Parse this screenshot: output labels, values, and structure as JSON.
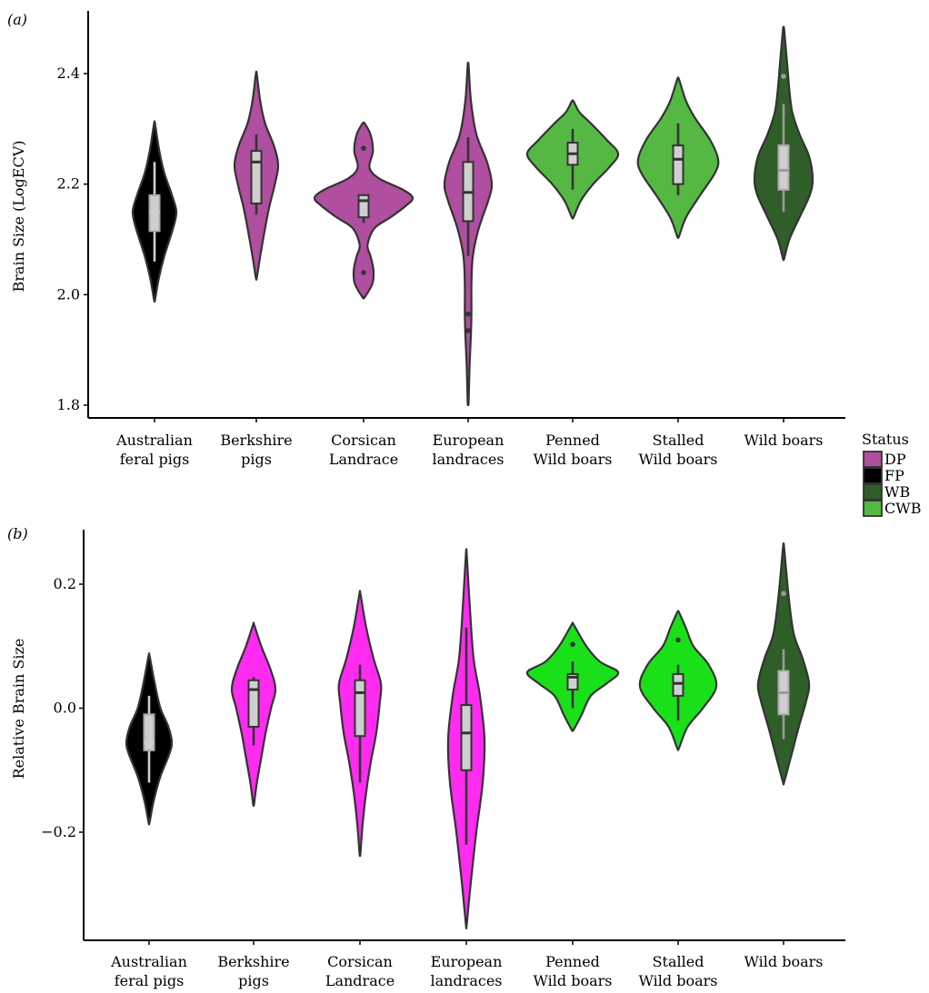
{
  "figure": {
    "legend": {
      "title": "Status",
      "entries": [
        {
          "label": "DP",
          "color": "#b04ea0"
        },
        {
          "label": "FP",
          "color": "#000000"
        },
        {
          "label": "WB",
          "color": "#2f5e28"
        },
        {
          "label": "CWB",
          "color": "#55b843"
        }
      ]
    },
    "categories_line1": [
      "Australian",
      "Berkshire",
      "Corsican",
      "European",
      "Penned",
      "Stalled",
      "Wild boars"
    ],
    "categories_line2": [
      "feral pigs",
      "pigs",
      "Landrace",
      "landraces",
      "Wild boars",
      "Wild boars",
      ""
    ]
  },
  "chart_data": [
    {
      "type": "violin",
      "panel_label": "(a)",
      "ylabel": "Brain Size (LogECV)",
      "xlabel": "",
      "ylim": [
        1.78,
        2.52
      ],
      "yticks": [
        1.8,
        2.0,
        2.2,
        2.4
      ],
      "ytick_labels": [
        "1.8",
        "2.0",
        "2.2",
        "2.4"
      ],
      "categories": [
        "Australian feral pigs",
        "Berkshire pigs",
        "Corsican Landrace",
        "European landraces",
        "Penned Wild boars",
        "Stalled Wild boars",
        "Wild boars"
      ],
      "series": [
        {
          "category": "Australian feral pigs",
          "status": "FP",
          "fill": "#000000",
          "box_color": "#cfcfcf",
          "whisker_color": "#cfcfcf",
          "range": [
            1.99,
            2.31
          ],
          "min": 2.06,
          "q1": 2.115,
          "median": 2.15,
          "q3": 2.18,
          "max": 2.24,
          "outliers": [],
          "density": [
            [
              1.99,
              0.02
            ],
            [
              2.03,
              0.2
            ],
            [
              2.07,
              0.45
            ],
            [
              2.12,
              0.85
            ],
            [
              2.15,
              1.0
            ],
            [
              2.18,
              0.8
            ],
            [
              2.22,
              0.45
            ],
            [
              2.26,
              0.22
            ],
            [
              2.31,
              0.02
            ]
          ]
        },
        {
          "category": "Berkshire pigs",
          "status": "DP",
          "fill": "#b04ea0",
          "box_color": "#cfcfcf",
          "whisker_color": "#333333",
          "range": [
            2.03,
            2.4
          ],
          "min": 2.145,
          "q1": 2.165,
          "median": 2.24,
          "q3": 2.26,
          "max": 2.29,
          "outliers": [],
          "density": [
            [
              2.03,
              0.02
            ],
            [
              2.07,
              0.18
            ],
            [
              2.12,
              0.4
            ],
            [
              2.16,
              0.6
            ],
            [
              2.2,
              0.85
            ],
            [
              2.235,
              1.0
            ],
            [
              2.27,
              0.8
            ],
            [
              2.31,
              0.4
            ],
            [
              2.35,
              0.18
            ],
            [
              2.4,
              0.02
            ]
          ]
        },
        {
          "category": "Corsican Landrace",
          "status": "DP",
          "fill": "#b04ea0",
          "box_color": "#cfcfcf",
          "whisker_color": "#333333",
          "range": [
            1.995,
            2.31
          ],
          "min": 2.13,
          "q1": 2.14,
          "median": 2.17,
          "q3": 2.18,
          "max": 2.18,
          "outliers": [
            2.265,
            2.04
          ],
          "density": [
            [
              1.995,
              0.02
            ],
            [
              2.02,
              0.18
            ],
            [
              2.045,
              0.2
            ],
            [
              2.07,
              0.14
            ],
            [
              2.09,
              0.08
            ],
            [
              2.12,
              0.22
            ],
            [
              2.14,
              0.55
            ],
            [
              2.16,
              0.85
            ],
            [
              2.175,
              1.0
            ],
            [
              2.19,
              0.8
            ],
            [
              2.21,
              0.32
            ],
            [
              2.23,
              0.12
            ],
            [
              2.26,
              0.19
            ],
            [
              2.29,
              0.14
            ],
            [
              2.31,
              0.02
            ]
          ]
        },
        {
          "category": "European landraces",
          "status": "DP",
          "fill": "#b04ea0",
          "box_color": "#cfcfcf",
          "whisker_color": "#333333",
          "range": [
            1.805,
            2.415
          ],
          "min": 2.07,
          "q1": 2.133,
          "median": 2.185,
          "q3": 2.24,
          "max": 2.285,
          "outliers": [
            1.965,
            1.935
          ],
          "density": [
            [
              1.805,
              0.02
            ],
            [
              1.87,
              0.06
            ],
            [
              1.93,
              0.12
            ],
            [
              1.97,
              0.14
            ],
            [
              2.02,
              0.14
            ],
            [
              2.07,
              0.2
            ],
            [
              2.12,
              0.45
            ],
            [
              2.17,
              0.85
            ],
            [
              2.2,
              1.0
            ],
            [
              2.24,
              0.8
            ],
            [
              2.29,
              0.35
            ],
            [
              2.35,
              0.12
            ],
            [
              2.415,
              0.02
            ]
          ]
        },
        {
          "category": "Penned Wild boars",
          "status": "CWB",
          "fill": "#55b843",
          "box_color": "#cfcfcf",
          "whisker_color": "#333333",
          "range": [
            2.14,
            2.35
          ],
          "min": 2.19,
          "q1": 2.235,
          "median": 2.255,
          "q3": 2.275,
          "max": 2.3,
          "outliers": [],
          "density": [
            [
              2.14,
              0.02
            ],
            [
              2.17,
              0.18
            ],
            [
              2.2,
              0.45
            ],
            [
              2.23,
              0.8
            ],
            [
              2.255,
              1.0
            ],
            [
              2.28,
              0.75
            ],
            [
              2.31,
              0.4
            ],
            [
              2.33,
              0.15
            ],
            [
              2.35,
              0.02
            ]
          ]
        },
        {
          "category": "Stalled Wild boars",
          "status": "CWB",
          "fill": "#55b843",
          "box_color": "#cfcfcf",
          "whisker_color": "#333333",
          "range": [
            2.105,
            2.39
          ],
          "min": 2.18,
          "q1": 2.2,
          "median": 2.245,
          "q3": 2.27,
          "max": 2.31,
          "outliers": [],
          "density": [
            [
              2.105,
              0.02
            ],
            [
              2.14,
              0.2
            ],
            [
              2.18,
              0.55
            ],
            [
              2.22,
              0.92
            ],
            [
              2.245,
              1.0
            ],
            [
              2.28,
              0.8
            ],
            [
              2.32,
              0.42
            ],
            [
              2.35,
              0.2
            ],
            [
              2.39,
              0.02
            ]
          ]
        },
        {
          "category": "Wild boars",
          "status": "WB",
          "fill": "#2f5e28",
          "box_color": "#cfcfcf",
          "whisker_color": "#9a9a9a",
          "range": [
            2.065,
            2.48
          ],
          "min": 2.15,
          "q1": 2.19,
          "median": 2.225,
          "q3": 2.27,
          "max": 2.345,
          "outliers": [
            2.395
          ],
          "density": [
            [
              2.065,
              0.02
            ],
            [
              2.1,
              0.2
            ],
            [
              2.14,
              0.55
            ],
            [
              2.18,
              0.9
            ],
            [
              2.21,
              1.0
            ],
            [
              2.25,
              0.88
            ],
            [
              2.29,
              0.55
            ],
            [
              2.33,
              0.3
            ],
            [
              2.37,
              0.2
            ],
            [
              2.42,
              0.12
            ],
            [
              2.48,
              0.02
            ]
          ]
        }
      ]
    },
    {
      "type": "violin",
      "panel_label": "(b)",
      "ylabel": "Relative Brain Size",
      "xlabel": "",
      "ylim": [
        -0.38,
        0.29
      ],
      "yticks": [
        -0.2,
        0.0,
        0.2
      ],
      "ytick_labels": [
        "−0.2",
        "0.0",
        "0.2"
      ],
      "categories": [
        "Australian feral pigs",
        "Berkshire pigs",
        "Corsican Landrace",
        "European landraces",
        "Penned Wild boars",
        "Stalled Wild boars",
        "Wild boars"
      ],
      "series": [
        {
          "category": "Australian feral pigs",
          "status": "FP",
          "fill": "#000000",
          "box_color": "#cfcfcf",
          "whisker_color": "#cfcfcf",
          "range": [
            -0.185,
            0.085
          ],
          "min": -0.12,
          "q1": -0.068,
          "median": -0.055,
          "q3": -0.01,
          "max": 0.02,
          "outliers": [],
          "density": [
            [
              -0.185,
              0.02
            ],
            [
              -0.15,
              0.2
            ],
            [
              -0.11,
              0.5
            ],
            [
              -0.075,
              0.88
            ],
            [
              -0.055,
              1.0
            ],
            [
              -0.03,
              0.85
            ],
            [
              0.0,
              0.5
            ],
            [
              0.04,
              0.25
            ],
            [
              0.085,
              0.02
            ]
          ]
        },
        {
          "category": "Berkshire pigs",
          "status": "DP",
          "fill": "#ff2bf0",
          "box_color": "#cfcfcf",
          "whisker_color": "#333333",
          "range": [
            -0.155,
            0.135
          ],
          "min": -0.06,
          "q1": -0.03,
          "median": 0.03,
          "q3": 0.045,
          "max": 0.05,
          "outliers": [],
          "density": [
            [
              -0.155,
              0.02
            ],
            [
              -0.12,
              0.15
            ],
            [
              -0.08,
              0.35
            ],
            [
              -0.04,
              0.55
            ],
            [
              0.0,
              0.8
            ],
            [
              0.03,
              1.0
            ],
            [
              0.06,
              0.8
            ],
            [
              0.1,
              0.35
            ],
            [
              0.135,
              0.02
            ]
          ]
        },
        {
          "category": "Corsican Landrace",
          "status": "DP",
          "fill": "#ff2bf0",
          "box_color": "#cfcfcf",
          "whisker_color": "#333333",
          "range": [
            -0.235,
            0.185
          ],
          "min": -0.12,
          "q1": -0.045,
          "median": 0.025,
          "q3": 0.045,
          "max": 0.07,
          "outliers": [],
          "density": [
            [
              -0.235,
              0.02
            ],
            [
              -0.19,
              0.12
            ],
            [
              -0.14,
              0.28
            ],
            [
              -0.09,
              0.5
            ],
            [
              -0.04,
              0.78
            ],
            [
              0.01,
              0.95
            ],
            [
              0.04,
              1.0
            ],
            [
              0.08,
              0.65
            ],
            [
              0.13,
              0.3
            ],
            [
              0.185,
              0.02
            ]
          ]
        },
        {
          "category": "European landraces",
          "status": "DP",
          "fill": "#ff2bf0",
          "box_color": "#cfcfcf",
          "whisker_color": "#333333",
          "range": [
            -0.35,
            0.25
          ],
          "min": -0.22,
          "q1": -0.1,
          "median": -0.04,
          "q3": 0.005,
          "max": 0.13,
          "outliers": [],
          "density": [
            [
              -0.35,
              0.02
            ],
            [
              -0.28,
              0.25
            ],
            [
              -0.2,
              0.55
            ],
            [
              -0.12,
              0.9
            ],
            [
              -0.05,
              1.0
            ],
            [
              0.02,
              0.75
            ],
            [
              0.08,
              0.4
            ],
            [
              0.16,
              0.2
            ],
            [
              0.25,
              0.02
            ]
          ]
        },
        {
          "category": "Penned Wild boars",
          "status": "CWB",
          "fill": "#1ae01a",
          "box_color": "#cfcfcf",
          "whisker_color": "#333333",
          "range": [
            -0.035,
            0.135
          ],
          "min": 0.0,
          "q1": 0.03,
          "median": 0.05,
          "q3": 0.055,
          "max": 0.075,
          "outliers": [
            0.103
          ],
          "density": [
            [
              -0.035,
              0.02
            ],
            [
              -0.01,
              0.2
            ],
            [
              0.02,
              0.4
            ],
            [
              0.04,
              0.75
            ],
            [
              0.058,
              1.0
            ],
            [
              0.075,
              0.6
            ],
            [
              0.1,
              0.3
            ],
            [
              0.135,
              0.02
            ]
          ]
        },
        {
          "category": "Stalled Wild boars",
          "status": "CWB",
          "fill": "#1ae01a",
          "box_color": "#cfcfcf",
          "whisker_color": "#333333",
          "range": [
            -0.065,
            0.155
          ],
          "min": -0.02,
          "q1": 0.02,
          "median": 0.04,
          "q3": 0.055,
          "max": 0.07,
          "outliers": [
            0.11
          ],
          "density": [
            [
              -0.065,
              0.02
            ],
            [
              -0.03,
              0.25
            ],
            [
              0.0,
              0.65
            ],
            [
              0.035,
              1.0
            ],
            [
              0.07,
              0.8
            ],
            [
              0.1,
              0.4
            ],
            [
              0.13,
              0.2
            ],
            [
              0.155,
              0.02
            ]
          ]
        },
        {
          "category": "Wild boars",
          "status": "WB",
          "fill": "#2f5e28",
          "box_color": "#cfcfcf",
          "whisker_color": "#9a9a9a",
          "range": [
            -0.12,
            0.26
          ],
          "min": -0.05,
          "q1": -0.01,
          "median": 0.025,
          "q3": 0.06,
          "max": 0.095,
          "outliers": [
            0.185
          ],
          "density": [
            [
              -0.12,
              0.02
            ],
            [
              -0.08,
              0.28
            ],
            [
              -0.03,
              0.6
            ],
            [
              0.01,
              0.88
            ],
            [
              0.04,
              1.0
            ],
            [
              0.08,
              0.75
            ],
            [
              0.12,
              0.4
            ],
            [
              0.18,
              0.2
            ],
            [
              0.26,
              0.02
            ]
          ]
        }
      ]
    }
  ]
}
